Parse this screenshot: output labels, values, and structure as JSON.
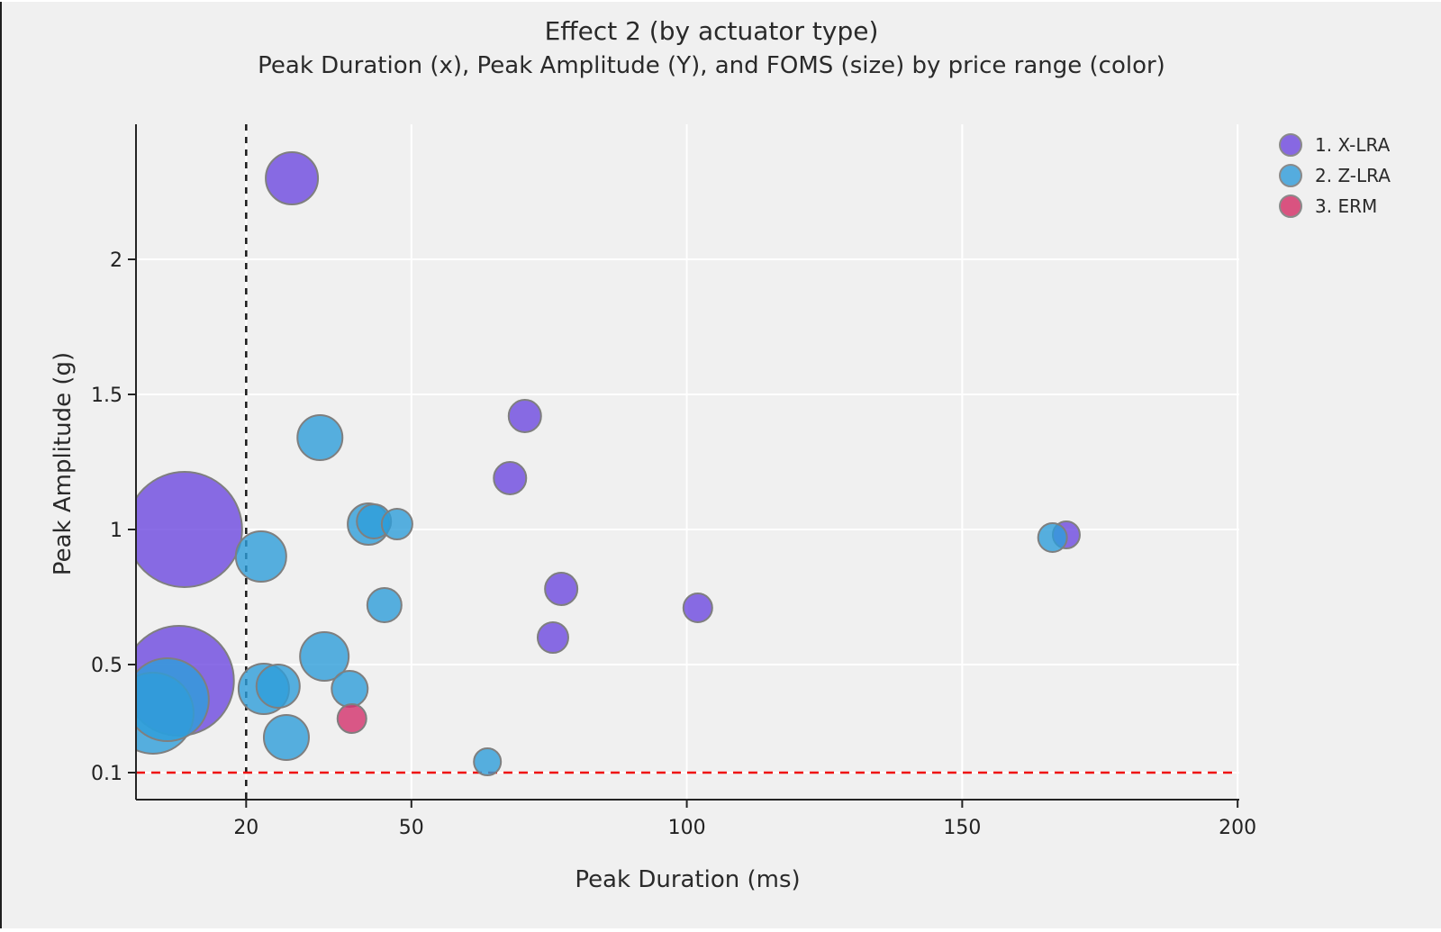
{
  "window": {
    "background": "#f0f0f0",
    "frame_edge_color": "#1f1f1f"
  },
  "chart_data": {
    "type": "scatter",
    "title": "Effect 2 (by actuator type)",
    "subtitle": "Peak Duration (x), Peak Amplitude (Y), and FOMS (size) by price range (color)",
    "xlabel": "Peak Duration (ms)",
    "ylabel": "Peak Amplitude (g)",
    "xlim": [
      0,
      200.3
    ],
    "ylim": [
      0,
      2.5
    ],
    "x_ticks": [
      20,
      50,
      100,
      150,
      200
    ],
    "y_ticks": [
      0.1,
      0.5,
      1,
      1.5,
      2
    ],
    "grid": true,
    "gridline_color": "#ffffff",
    "axis_color": "#242424",
    "text_color": "#2a2a2a",
    "bubble_opacity": 0.8,
    "bubble_stroke": "#7f7f7f",
    "legend": {
      "position": "top-right"
    },
    "annotations": {
      "vline": {
        "x": 20,
        "color": "#1a1a1a",
        "style": "dashed"
      },
      "hline": {
        "y": 0.1,
        "color": "#ef1010",
        "style": "dashed"
      }
    },
    "series": [
      {
        "name": "1. X-LRA",
        "color": "#6d49e0",
        "legend_color": "#8768e2",
        "points": [
          {
            "x": 8.8,
            "y": 1.0,
            "r": 64
          },
          {
            "x": 7.8,
            "y": 0.44,
            "r": 61
          },
          {
            "x": 28.3,
            "y": 2.3,
            "r": 29
          },
          {
            "x": 70.6,
            "y": 1.42,
            "r": 18
          },
          {
            "x": 67.9,
            "y": 1.19,
            "r": 18
          },
          {
            "x": 77.2,
            "y": 0.78,
            "r": 18
          },
          {
            "x": 75.7,
            "y": 0.6,
            "r": 17
          },
          {
            "x": 102.0,
            "y": 0.71,
            "r": 16
          },
          {
            "x": 168.9,
            "y": 0.98,
            "r": 15
          }
        ]
      },
      {
        "name": "2. Z-LRA",
        "color": "#2e9eda",
        "legend_color": "#55acde",
        "points": [
          {
            "x": 3.1,
            "y": 0.32,
            "r": 45
          },
          {
            "x": 5.7,
            "y": 0.37,
            "r": 46
          },
          {
            "x": 22.7,
            "y": 0.9,
            "r": 28
          },
          {
            "x": 33.4,
            "y": 1.34,
            "r": 25
          },
          {
            "x": 42.2,
            "y": 1.02,
            "r": 23
          },
          {
            "x": 43.2,
            "y": 1.03,
            "r": 19
          },
          {
            "x": 47.4,
            "y": 1.02,
            "r": 17
          },
          {
            "x": 45.1,
            "y": 0.72,
            "r": 19
          },
          {
            "x": 34.2,
            "y": 0.53,
            "r": 27
          },
          {
            "x": 23.2,
            "y": 0.41,
            "r": 28
          },
          {
            "x": 25.8,
            "y": 0.42,
            "r": 24
          },
          {
            "x": 38.8,
            "y": 0.41,
            "r": 20
          },
          {
            "x": 27.3,
            "y": 0.23,
            "r": 25
          },
          {
            "x": 63.8,
            "y": 0.14,
            "r": 15
          },
          {
            "x": 166.4,
            "y": 0.97,
            "r": 16
          }
        ]
      },
      {
        "name": "3. ERM",
        "color": "#d3316c",
        "legend_color": "#d95380",
        "points": [
          {
            "x": 39.2,
            "y": 0.3,
            "r": 16
          }
        ]
      }
    ]
  }
}
